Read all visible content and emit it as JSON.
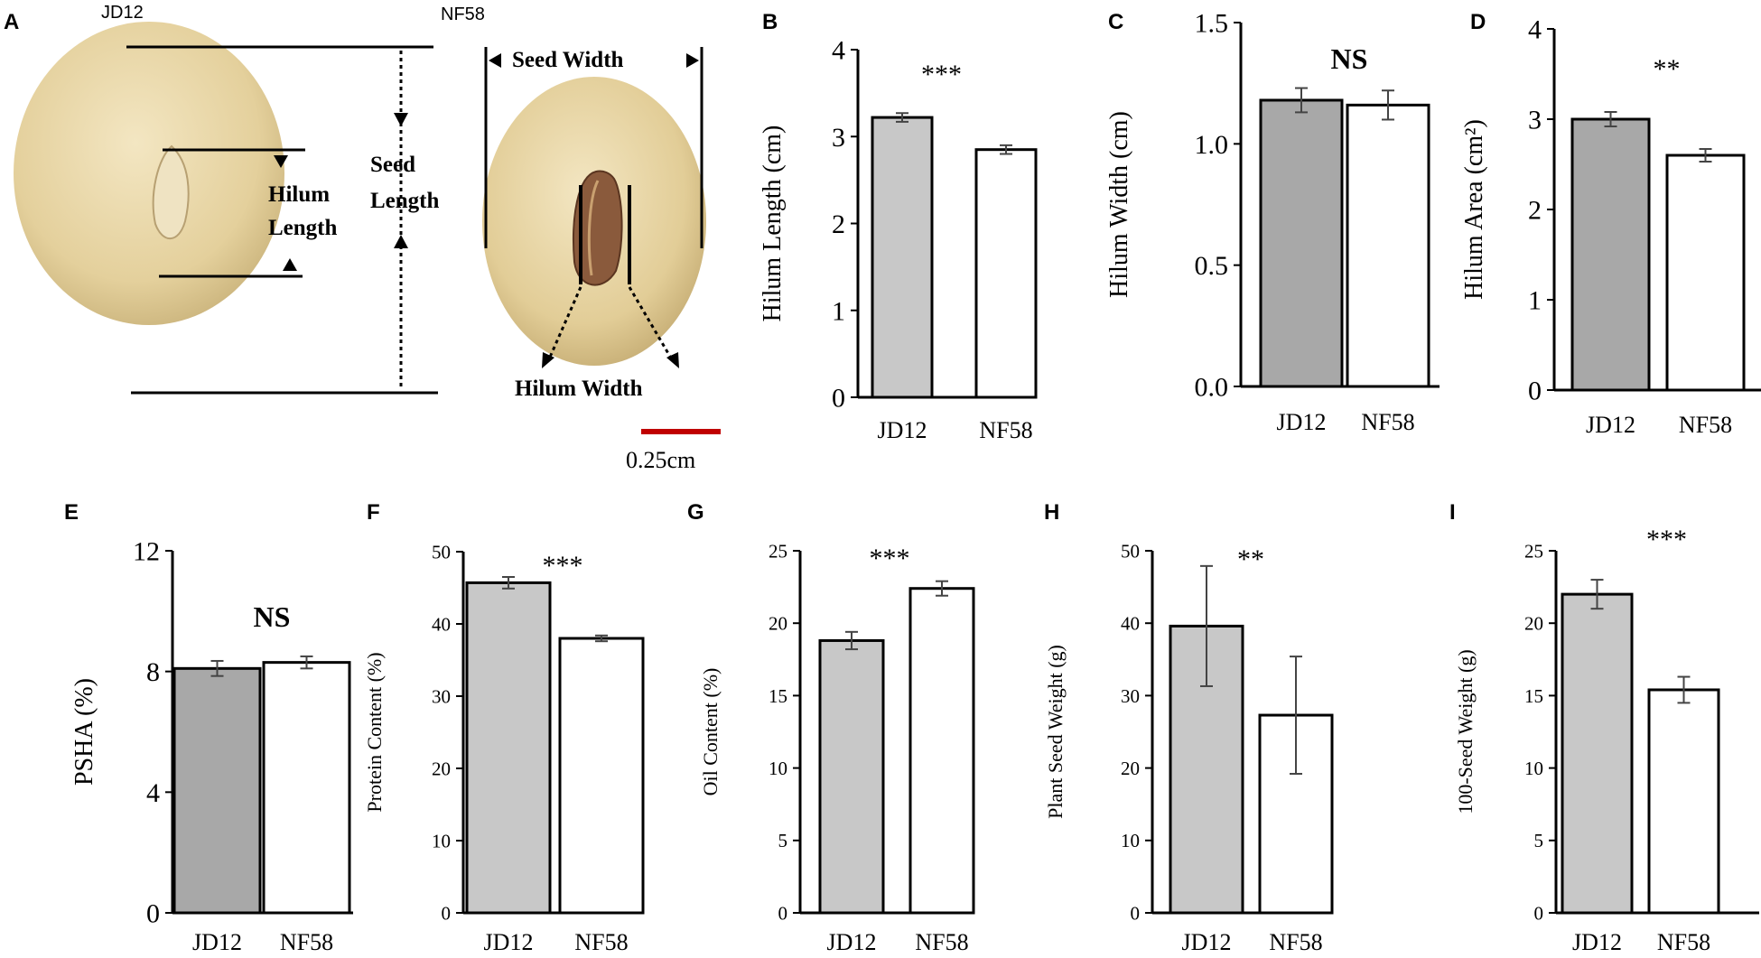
{
  "figure": {
    "panel_a": {
      "letter": "A",
      "left_seed_label": "JD12",
      "right_seed_label": "NF58",
      "seed_width_label": "Seed Width",
      "hilum_length_label_1": "Hilum",
      "hilum_length_label_2": "Length",
      "seed_length_label_1": "Seed",
      "seed_length_label_2": "Length",
      "hilum_width_label": "Hilum Width",
      "scale_bar_label": "0.25cm",
      "colors": {
        "seed": "#e8d7a8",
        "seed_shadow": "#c9b27a",
        "hilum": "#8a5a3c",
        "scale_bar": "#c00000"
      }
    }
  },
  "chart_data": [
    {
      "id": "B",
      "type": "bar",
      "letter": "B",
      "categories": [
        "JD12",
        "NF58"
      ],
      "values": [
        3.22,
        2.85
      ],
      "errors": [
        0.05,
        0.05
      ],
      "ylabel": "Hilum Length (cm)",
      "ylim": [
        0,
        4
      ],
      "ticks": [
        0,
        1,
        2,
        3,
        4
      ],
      "tick_labels": [
        "0",
        "1",
        "2",
        "3",
        "4"
      ],
      "significance": "***"
    },
    {
      "id": "C",
      "type": "bar",
      "letter": "C",
      "categories": [
        "JD12",
        "NF58"
      ],
      "values": [
        1.18,
        1.16
      ],
      "errors": [
        0.05,
        0.06
      ],
      "ylabel": "Hilum Width (cm)",
      "ylim": [
        0,
        1.5
      ],
      "ticks": [
        0,
        0.5,
        1.0,
        1.5
      ],
      "tick_labels": [
        "0.0",
        "0.5",
        "1.0",
        "1.5"
      ],
      "significance": "NS"
    },
    {
      "id": "D",
      "type": "bar",
      "letter": "D",
      "categories": [
        "JD12",
        "NF58"
      ],
      "values": [
        3.0,
        2.6
      ],
      "errors": [
        0.08,
        0.07
      ],
      "ylabel": "Hilum Area (cm²)",
      "ylim": [
        0,
        4
      ],
      "ticks": [
        0,
        1,
        2,
        3,
        4
      ],
      "tick_labels": [
        "0",
        "1",
        "2",
        "3",
        "4"
      ],
      "significance": "**"
    },
    {
      "id": "E",
      "type": "bar",
      "letter": "E",
      "categories": [
        "JD12",
        "NF58"
      ],
      "values": [
        8.1,
        8.3
      ],
      "errors": [
        0.25,
        0.2
      ],
      "ylabel": "PSHA (%)",
      "ylim": [
        0,
        12
      ],
      "ticks": [
        0,
        4,
        8,
        12
      ],
      "tick_labels": [
        "0",
        "4",
        "8",
        "12"
      ],
      "significance": "NS"
    },
    {
      "id": "F",
      "type": "bar",
      "letter": "F",
      "categories": [
        "JD12",
        "NF58"
      ],
      "values": [
        45.7,
        38.0
      ],
      "errors": [
        0.8,
        0.4
      ],
      "ylabel": "Protein Content (%)",
      "ylim": [
        0,
        50
      ],
      "ticks": [
        0,
        10,
        20,
        30,
        40,
        50
      ],
      "tick_labels": [
        "0",
        "10",
        "20",
        "30",
        "40",
        "50"
      ],
      "significance": "***"
    },
    {
      "id": "G",
      "type": "bar",
      "letter": "G",
      "categories": [
        "JD12",
        "NF58"
      ],
      "values": [
        18.8,
        22.4
      ],
      "errors": [
        0.6,
        0.5
      ],
      "ylabel": "Oil Content (%)",
      "ylim": [
        0,
        25
      ],
      "ticks": [
        0,
        5,
        10,
        15,
        20,
        25
      ],
      "tick_labels": [
        "0",
        "5",
        "10",
        "15",
        "20",
        "25"
      ],
      "significance": "***"
    },
    {
      "id": "H",
      "type": "bar",
      "letter": "H",
      "categories": [
        "JD12",
        "NF58"
      ],
      "values": [
        39.6,
        27.3
      ],
      "errors": [
        8.3,
        8.1
      ],
      "ylabel": "Plant Seed Weight (g)",
      "ylim": [
        0,
        50
      ],
      "ticks": [
        0,
        10,
        20,
        30,
        40,
        50
      ],
      "tick_labels": [
        "0",
        "10",
        "20",
        "30",
        "40",
        "50"
      ],
      "significance": "**"
    },
    {
      "id": "I",
      "type": "bar",
      "letter": "I",
      "categories": [
        "JD12",
        "NF58"
      ],
      "values": [
        22.0,
        15.4
      ],
      "errors": [
        1.0,
        0.9
      ],
      "ylabel": "100-Seed Weight (g)",
      "ylim": [
        0,
        25
      ],
      "ticks": [
        0,
        5,
        10,
        15,
        20,
        25
      ],
      "tick_labels": [
        "0",
        "5",
        "10",
        "15",
        "20",
        "25"
      ],
      "significance": "***"
    }
  ],
  "bar_colors": {
    "jd12": "#c8c8c8",
    "nf58": "#ffffff",
    "jd12_dark": "#a8a8a8"
  }
}
